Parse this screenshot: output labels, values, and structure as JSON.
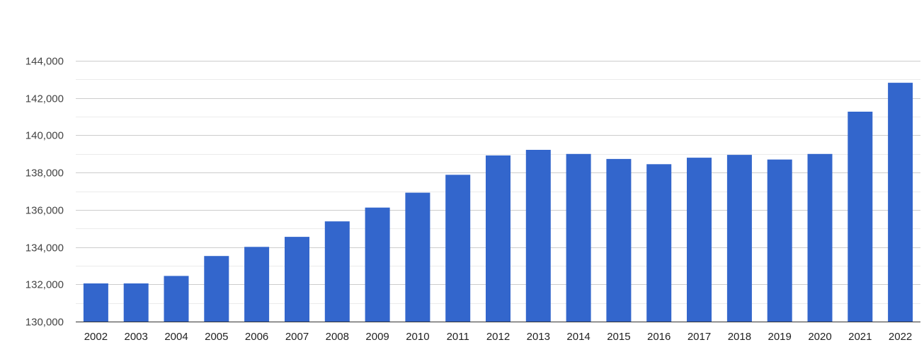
{
  "chart_data": {
    "type": "bar",
    "title": "",
    "xlabel": "",
    "ylabel": "",
    "categories": [
      "2002",
      "2003",
      "2004",
      "2005",
      "2006",
      "2007",
      "2008",
      "2009",
      "2010",
      "2011",
      "2012",
      "2013",
      "2014",
      "2015",
      "2016",
      "2017",
      "2018",
      "2019",
      "2020",
      "2021",
      "2022"
    ],
    "series": [
      {
        "values": [
          132050,
          132050,
          132450,
          133520,
          134010,
          134550,
          135380,
          136120,
          136920,
          137880,
          138920,
          139220,
          139000,
          138730,
          138450,
          138800,
          138950,
          138700,
          139000,
          141270,
          142820
        ]
      }
    ],
    "ylim": [
      130000,
      144000
    ],
    "yticks": [
      130000,
      132000,
      134000,
      136000,
      138000,
      140000,
      142000,
      144000
    ],
    "ytick_labels": [
      "130,000",
      "132,000",
      "134,000",
      "136,000",
      "138,000",
      "140,000",
      "142,000",
      "144,000"
    ],
    "grid": true,
    "legend": "none",
    "bar_color": "#3366cc",
    "gridline_color": "#cccccc",
    "minor_gridline_color": "#ebebeb",
    "label_color": "#444444"
  }
}
